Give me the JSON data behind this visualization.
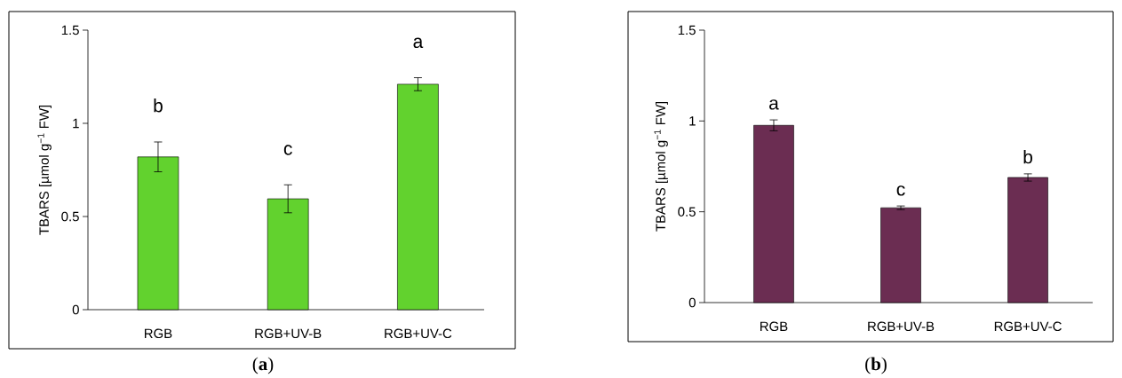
{
  "chart_data": [
    {
      "type": "bar",
      "categories": [
        "RGB",
        "RGB+UV-B",
        "RGB+UV-C"
      ],
      "values": [
        0.82,
        0.595,
        1.21
      ],
      "errors": [
        0.08,
        0.075,
        0.035
      ],
      "color": "#62d22e",
      "ylabel": "TBARS [µmol g$^{−1}$ FW]",
      "ylim": [
        0,
        1.5
      ],
      "yticks": [
        0,
        0.5,
        1,
        1.5
      ],
      "annotations": [
        "b",
        "c",
        "a",
        "(**a**)"
      ]
    },
    {
      "type": "bar",
      "categories": [
        "RGB",
        "RGB+UV-B",
        "RGB+UV-C"
      ],
      "values": [
        0.976,
        0.522,
        0.689
      ],
      "errors": [
        0.03,
        0.01,
        0.02
      ],
      "color": "#6b2d52",
      "ylabel": "TBARS [µmol g$^{−1}$ FW]",
      "ylim": [
        0,
        1.5
      ],
      "yticks": [
        0,
        0.5,
        1,
        1.5
      ],
      "annotations": [
        "a",
        "c",
        "b",
        "(**b**)"
      ]
    }
  ]
}
